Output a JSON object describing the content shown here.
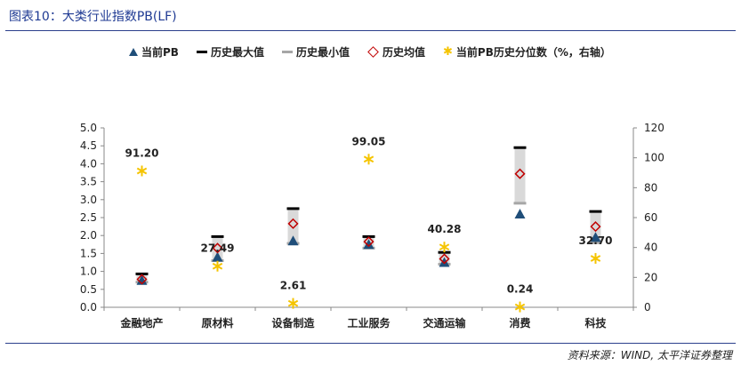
{
  "figure_title": "图表10：大类行业指数PB(LF)",
  "source": "资料来源：WIND, 太平洋证券整理",
  "legend": {
    "current": "当前PB",
    "max": "历史最大值",
    "min": "历史最小值",
    "mean": "历史均值",
    "pct": "当前PB历史分位数（%，右轴）"
  },
  "colors": {
    "current": "#1f4e79",
    "max": "#000000",
    "min": "#a6a6a6",
    "range": "#d9d9d9",
    "mean": "#c00000",
    "pct": "#f5c400"
  },
  "chart_data": {
    "type": "scatter",
    "categories": [
      "金融地产",
      "原材料",
      "设备制造",
      "工业服务",
      "交通运输",
      "消费",
      "科技"
    ],
    "series": [
      {
        "name": "当前PB",
        "axis": "left",
        "values": [
          0.75,
          1.4,
          1.85,
          1.75,
          1.25,
          2.6,
          1.95
        ]
      },
      {
        "name": "历史最大值",
        "axis": "left",
        "values": [
          0.93,
          1.97,
          2.75,
          1.97,
          1.53,
          4.45,
          2.67
        ]
      },
      {
        "name": "历史最小值",
        "axis": "left",
        "values": [
          0.7,
          1.3,
          1.78,
          1.65,
          1.2,
          2.9,
          1.8
        ]
      },
      {
        "name": "历史均值",
        "axis": "left",
        "values": [
          0.78,
          1.65,
          2.33,
          1.83,
          1.35,
          3.72,
          2.25
        ]
      },
      {
        "name": "当前PB历史分位数（%，右轴）",
        "axis": "right",
        "values": [
          91.2,
          27.49,
          2.61,
          99.05,
          40.28,
          0.24,
          32.7
        ]
      }
    ],
    "data_labels": [
      "91.20",
      "27.49",
      "2.61",
      "99.05",
      "40.28",
      "0.24",
      "32.70"
    ],
    "y_left": {
      "min": 0,
      "max": 5.0,
      "ticks": [
        "0.0",
        "0.5",
        "1.0",
        "1.5",
        "2.0",
        "2.5",
        "3.0",
        "3.5",
        "4.0",
        "4.5",
        "5.0"
      ]
    },
    "y_right": {
      "min": 0,
      "max": 120,
      "ticks": [
        "0",
        "20",
        "40",
        "60",
        "80",
        "100",
        "120"
      ]
    },
    "grid": false,
    "legend_position": "top"
  }
}
